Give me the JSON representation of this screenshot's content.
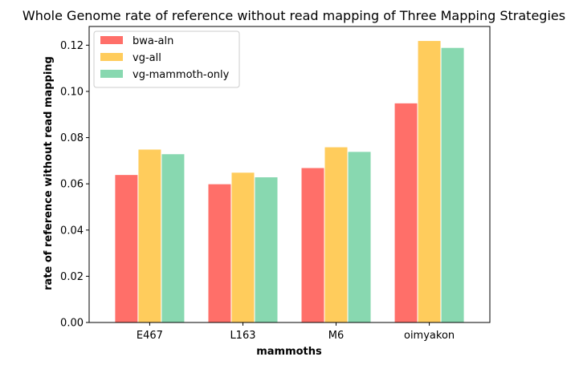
{
  "chart_data": {
    "type": "bar",
    "title": "Whole Genome rate of reference without read mapping of Three Mapping Strategies",
    "xlabel": "mammoths",
    "ylabel": "rate of reference without read mapping",
    "categories": [
      "E467",
      "L163",
      "M6",
      "oimyakon"
    ],
    "series": [
      {
        "name": "bwa-aln",
        "color": "#ff6f69",
        "values": [
          0.064,
          0.06,
          0.067,
          0.095
        ]
      },
      {
        "name": "vg-all",
        "color": "#ffcc5c",
        "values": [
          0.075,
          0.065,
          0.076,
          0.122
        ]
      },
      {
        "name": "vg-mammoth-only",
        "color": "#88d8b0",
        "values": [
          0.073,
          0.063,
          0.074,
          0.119
        ]
      }
    ],
    "ylim": [
      0,
      0.1281
    ],
    "yticks": [
      "0.00",
      "0.02",
      "0.04",
      "0.06",
      "0.08",
      "0.10",
      "0.12"
    ],
    "grid": false,
    "legend_position": "top-left"
  }
}
